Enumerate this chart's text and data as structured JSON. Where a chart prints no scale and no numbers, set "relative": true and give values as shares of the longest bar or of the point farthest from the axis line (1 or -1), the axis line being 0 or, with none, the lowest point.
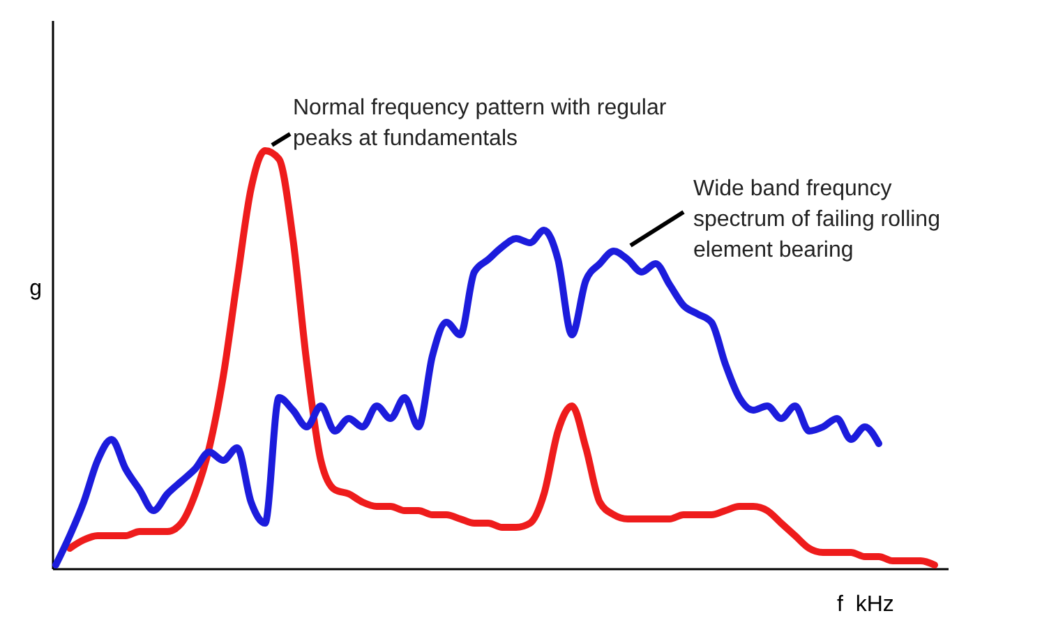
{
  "chart_data": {
    "type": "line",
    "relative": true,
    "xlabel": "f  kHz",
    "ylabel": "g",
    "annotations": [
      "Normal frequency pattern with regular\npeaks at fundamentals",
      "Wide band frequncy\nspectrum of failing rolling\nelement bearing"
    ],
    "categories": [
      null,
      null,
      null,
      null,
      null,
      null,
      null,
      null,
      null,
      null,
      null,
      null,
      null,
      null,
      null,
      null,
      null,
      null,
      null,
      null,
      null,
      null,
      null,
      null,
      null,
      null,
      null,
      null,
      null,
      null,
      null,
      null,
      null,
      null,
      null,
      null,
      null,
      null,
      null,
      null,
      null,
      null,
      null,
      null,
      null,
      null,
      null,
      null,
      null,
      null,
      null,
      null,
      null,
      null,
      null,
      null,
      null,
      null,
      null,
      null,
      null,
      null,
      null,
      null,
      null
    ],
    "series": [
      {
        "color": "#ee1c1c",
        "values": [
          null,
          0.05,
          0.07,
          0.08,
          0.08,
          0.08,
          0.09,
          0.09,
          0.09,
          0.11,
          0.18,
          0.29,
          0.46,
          0.69,
          0.91,
          1,
          0.98,
          0.79,
          0.49,
          0.26,
          0.19,
          0.18,
          0.16,
          0.15,
          0.15,
          0.14,
          0.14,
          0.13,
          0.13,
          0.12,
          0.11,
          0.11,
          0.1,
          0.1,
          0.11,
          0.18,
          0.33,
          0.39,
          0.29,
          0.16,
          0.13,
          0.12,
          0.12,
          0.12,
          0.12,
          0.13,
          0.13,
          0.13,
          0.14,
          0.15,
          0.15,
          0.14,
          0.11,
          0.08,
          0.05,
          0.04,
          0.04,
          0.04,
          0.03,
          0.03,
          0.02,
          0.02,
          0.02,
          0.01,
          null
        ]
      },
      {
        "color": "#1c1cdc",
        "values": [
          0.01,
          0.08,
          0.16,
          0.26,
          0.31,
          0.24,
          0.19,
          0.14,
          0.18,
          0.21,
          0.24,
          0.28,
          0.26,
          0.29,
          0.16,
          0.11,
          0.41,
          0.38,
          0.34,
          0.39,
          0.33,
          0.36,
          0.34,
          0.39,
          0.36,
          0.41,
          0.34,
          0.51,
          0.59,
          0.56,
          0.71,
          0.74,
          0.77,
          0.79,
          0.78,
          0.81,
          0.74,
          0.56,
          0.69,
          0.73,
          0.76,
          0.74,
          0.71,
          0.73,
          0.68,
          0.63,
          0.61,
          0.59,
          0.49,
          0.41,
          0.38,
          0.39,
          0.36,
          0.39,
          0.33,
          0.34,
          0.36,
          0.31,
          0.34,
          0.3,
          null,
          null,
          null,
          null,
          null
        ]
      }
    ]
  }
}
